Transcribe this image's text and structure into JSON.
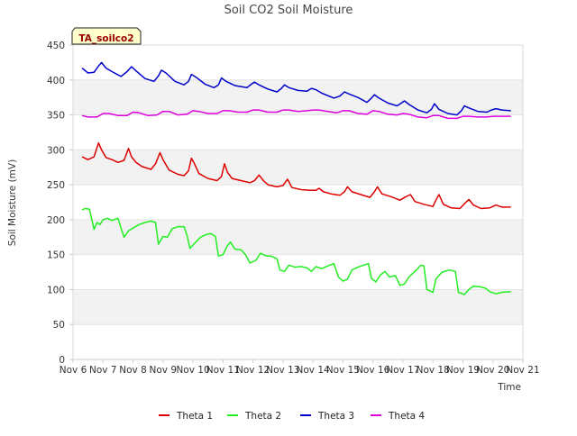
{
  "chart_data": {
    "type": "line",
    "title": "Soil CO2 Soil Moisture",
    "xlabel": "Time",
    "ylabel": "Soil Moisture (mV)",
    "site_label": "TA_soilco2",
    "ylim": [
      0,
      450
    ],
    "xlim": [
      6,
      21
    ],
    "yticks": [
      0,
      50,
      100,
      150,
      200,
      250,
      300,
      350,
      400,
      450
    ],
    "xticks": [
      {
        "value": 6,
        "label": "Nov 6"
      },
      {
        "value": 7,
        "label": "Nov 7"
      },
      {
        "value": 8,
        "label": "Nov 8"
      },
      {
        "value": 9,
        "label": "Nov 9"
      },
      {
        "value": 10,
        "label": "Nov 10"
      },
      {
        "value": 11,
        "label": "Nov 11"
      },
      {
        "value": 12,
        "label": "Nov 12"
      },
      {
        "value": 13,
        "label": "Nov 13"
      },
      {
        "value": 14,
        "label": "Nov 14"
      },
      {
        "value": 15,
        "label": "Nov 15"
      },
      {
        "value": 16,
        "label": "Nov 16"
      },
      {
        "value": 17,
        "label": "Nov 17"
      },
      {
        "value": 18,
        "label": "Nov 18"
      },
      {
        "value": 19,
        "label": "Nov 19"
      },
      {
        "value": 20,
        "label": "Nov 20"
      },
      {
        "value": 21,
        "label": "Nov 21"
      }
    ],
    "grid": "horizontal bands",
    "legend_position": "bottom",
    "series": [
      {
        "name": "Theta 1",
        "color": "#dd0000",
        "points": [
          [
            6.3,
            290
          ],
          [
            6.5,
            286
          ],
          [
            6.7,
            290
          ],
          [
            6.85,
            310
          ],
          [
            6.95,
            300
          ],
          [
            7.1,
            289
          ],
          [
            7.3,
            286
          ],
          [
            7.5,
            282
          ],
          [
            7.7,
            285
          ],
          [
            7.85,
            302
          ],
          [
            7.95,
            290
          ],
          [
            8.1,
            282
          ],
          [
            8.3,
            276
          ],
          [
            8.6,
            272
          ],
          [
            8.75,
            280
          ],
          [
            8.9,
            296
          ],
          [
            9.0,
            286
          ],
          [
            9.2,
            271
          ],
          [
            9.5,
            265
          ],
          [
            9.7,
            263
          ],
          [
            9.85,
            270
          ],
          [
            9.95,
            288
          ],
          [
            10.05,
            280
          ],
          [
            10.2,
            266
          ],
          [
            10.5,
            259
          ],
          [
            10.8,
            256
          ],
          [
            10.95,
            262
          ],
          [
            11.05,
            280
          ],
          [
            11.15,
            268
          ],
          [
            11.3,
            259
          ],
          [
            11.6,
            256
          ],
          [
            11.9,
            253
          ],
          [
            12.05,
            256
          ],
          [
            12.2,
            264
          ],
          [
            12.35,
            256
          ],
          [
            12.5,
            250
          ],
          [
            12.8,
            247
          ],
          [
            13.0,
            249
          ],
          [
            13.15,
            258
          ],
          [
            13.3,
            246
          ],
          [
            13.6,
            243
          ],
          [
            13.9,
            242
          ],
          [
            14.1,
            242
          ],
          [
            14.2,
            245
          ],
          [
            14.35,
            240
          ],
          [
            14.6,
            237
          ],
          [
            14.9,
            235
          ],
          [
            15.05,
            240
          ],
          [
            15.15,
            247
          ],
          [
            15.3,
            240
          ],
          [
            15.6,
            236
          ],
          [
            15.9,
            232
          ],
          [
            16.05,
            240
          ],
          [
            16.15,
            247
          ],
          [
            16.3,
            237
          ],
          [
            16.6,
            233
          ],
          [
            16.9,
            228
          ],
          [
            17.1,
            233
          ],
          [
            17.25,
            236
          ],
          [
            17.4,
            226
          ],
          [
            17.7,
            222
          ],
          [
            18.0,
            219
          ],
          [
            18.1,
            228
          ],
          [
            18.2,
            236
          ],
          [
            18.35,
            222
          ],
          [
            18.6,
            217
          ],
          [
            18.9,
            216
          ],
          [
            19.1,
            225
          ],
          [
            19.2,
            229
          ],
          [
            19.35,
            221
          ],
          [
            19.6,
            216
          ],
          [
            19.9,
            217
          ],
          [
            20.1,
            221
          ],
          [
            20.3,
            218
          ],
          [
            20.6,
            218
          ]
        ]
      },
      {
        "name": "Theta 2",
        "color": "#22ee22",
        "points": [
          [
            6.3,
            214
          ],
          [
            6.4,
            216
          ],
          [
            6.55,
            215
          ],
          [
            6.7,
            186
          ],
          [
            6.8,
            196
          ],
          [
            6.9,
            193
          ],
          [
            7.0,
            200
          ],
          [
            7.15,
            202
          ],
          [
            7.3,
            199
          ],
          [
            7.5,
            202
          ],
          [
            7.6,
            188
          ],
          [
            7.7,
            175
          ],
          [
            7.85,
            184
          ],
          [
            8.0,
            188
          ],
          [
            8.2,
            193
          ],
          [
            8.4,
            196
          ],
          [
            8.6,
            198
          ],
          [
            8.75,
            196
          ],
          [
            8.85,
            165
          ],
          [
            9.0,
            176
          ],
          [
            9.15,
            175
          ],
          [
            9.3,
            187
          ],
          [
            9.5,
            190
          ],
          [
            9.7,
            190
          ],
          [
            9.8,
            178
          ],
          [
            9.9,
            159
          ],
          [
            10.05,
            166
          ],
          [
            10.25,
            175
          ],
          [
            10.45,
            179
          ],
          [
            10.6,
            180
          ],
          [
            10.75,
            176
          ],
          [
            10.85,
            148
          ],
          [
            11.0,
            150
          ],
          [
            11.15,
            163
          ],
          [
            11.25,
            168
          ],
          [
            11.4,
            158
          ],
          [
            11.6,
            157
          ],
          [
            11.75,
            150
          ],
          [
            11.9,
            138
          ],
          [
            12.1,
            142
          ],
          [
            12.25,
            152
          ],
          [
            12.45,
            148
          ],
          [
            12.6,
            148
          ],
          [
            12.8,
            144
          ],
          [
            12.9,
            128
          ],
          [
            13.05,
            126
          ],
          [
            13.2,
            135
          ],
          [
            13.4,
            132
          ],
          [
            13.6,
            133
          ],
          [
            13.8,
            131
          ],
          [
            13.95,
            126
          ],
          [
            14.1,
            133
          ],
          [
            14.3,
            130
          ],
          [
            14.5,
            134
          ],
          [
            14.7,
            137
          ],
          [
            14.85,
            118
          ],
          [
            15.0,
            112
          ],
          [
            15.15,
            115
          ],
          [
            15.3,
            128
          ],
          [
            15.5,
            132
          ],
          [
            15.7,
            135
          ],
          [
            15.85,
            137
          ],
          [
            15.95,
            116
          ],
          [
            16.1,
            111
          ],
          [
            16.25,
            121
          ],
          [
            16.4,
            126
          ],
          [
            16.55,
            118
          ],
          [
            16.75,
            120
          ],
          [
            16.9,
            106
          ],
          [
            17.05,
            108
          ],
          [
            17.2,
            118
          ],
          [
            17.45,
            128
          ],
          [
            17.6,
            135
          ],
          [
            17.7,
            134
          ],
          [
            17.8,
            100
          ],
          [
            18.0,
            96
          ],
          [
            18.1,
            115
          ],
          [
            18.3,
            125
          ],
          [
            18.55,
            128
          ],
          [
            18.75,
            126
          ],
          [
            18.85,
            96
          ],
          [
            19.05,
            93
          ],
          [
            19.2,
            100
          ],
          [
            19.35,
            105
          ],
          [
            19.55,
            104
          ],
          [
            19.75,
            102
          ],
          [
            19.9,
            97
          ],
          [
            20.1,
            94
          ],
          [
            20.3,
            96
          ],
          [
            20.6,
            97
          ]
        ]
      },
      {
        "name": "Theta 3",
        "color": "#0000cc",
        "points": [
          [
            6.3,
            417
          ],
          [
            6.5,
            410
          ],
          [
            6.7,
            411
          ],
          [
            6.85,
            420
          ],
          [
            6.95,
            425
          ],
          [
            7.1,
            417
          ],
          [
            7.3,
            412
          ],
          [
            7.6,
            405
          ],
          [
            7.8,
            412
          ],
          [
            7.95,
            419
          ],
          [
            8.1,
            413
          ],
          [
            8.4,
            402
          ],
          [
            8.7,
            398
          ],
          [
            8.85,
            406
          ],
          [
            8.95,
            414
          ],
          [
            9.1,
            410
          ],
          [
            9.4,
            398
          ],
          [
            9.7,
            393
          ],
          [
            9.85,
            398
          ],
          [
            9.95,
            408
          ],
          [
            10.1,
            404
          ],
          [
            10.4,
            394
          ],
          [
            10.7,
            389
          ],
          [
            10.85,
            393
          ],
          [
            10.95,
            403
          ],
          [
            11.1,
            398
          ],
          [
            11.4,
            392
          ],
          [
            11.8,
            389
          ],
          [
            11.95,
            394
          ],
          [
            12.05,
            397
          ],
          [
            12.2,
            393
          ],
          [
            12.5,
            387
          ],
          [
            12.8,
            383
          ],
          [
            12.95,
            388
          ],
          [
            13.05,
            393
          ],
          [
            13.2,
            389
          ],
          [
            13.5,
            385
          ],
          [
            13.8,
            384
          ],
          [
            13.95,
            388
          ],
          [
            14.1,
            386
          ],
          [
            14.3,
            381
          ],
          [
            14.7,
            374
          ],
          [
            14.9,
            377
          ],
          [
            15.05,
            383
          ],
          [
            15.2,
            380
          ],
          [
            15.5,
            375
          ],
          [
            15.8,
            368
          ],
          [
            15.95,
            374
          ],
          [
            16.05,
            379
          ],
          [
            16.2,
            374
          ],
          [
            16.5,
            367
          ],
          [
            16.8,
            363
          ],
          [
            16.95,
            367
          ],
          [
            17.05,
            370
          ],
          [
            17.2,
            365
          ],
          [
            17.5,
            357
          ],
          [
            17.8,
            353
          ],
          [
            17.95,
            358
          ],
          [
            18.05,
            366
          ],
          [
            18.2,
            358
          ],
          [
            18.5,
            352
          ],
          [
            18.8,
            350
          ],
          [
            18.95,
            356
          ],
          [
            19.05,
            363
          ],
          [
            19.2,
            360
          ],
          [
            19.5,
            355
          ],
          [
            19.8,
            354
          ],
          [
            19.95,
            357
          ],
          [
            20.1,
            359
          ],
          [
            20.3,
            357
          ],
          [
            20.6,
            356
          ]
        ]
      },
      {
        "name": "Theta 4",
        "color": "#dd00dd",
        "points": [
          [
            6.3,
            349
          ],
          [
            6.5,
            347
          ],
          [
            6.8,
            347
          ],
          [
            7.0,
            352
          ],
          [
            7.2,
            352
          ],
          [
            7.5,
            349
          ],
          [
            7.8,
            349
          ],
          [
            8.0,
            354
          ],
          [
            8.2,
            353
          ],
          [
            8.5,
            349
          ],
          [
            8.8,
            350
          ],
          [
            9.0,
            355
          ],
          [
            9.2,
            355
          ],
          [
            9.5,
            350
          ],
          [
            9.8,
            351
          ],
          [
            10.0,
            356
          ],
          [
            10.2,
            355
          ],
          [
            10.5,
            352
          ],
          [
            10.8,
            352
          ],
          [
            11.0,
            356
          ],
          [
            11.2,
            356
          ],
          [
            11.5,
            354
          ],
          [
            11.8,
            354
          ],
          [
            12.0,
            357
          ],
          [
            12.2,
            357
          ],
          [
            12.5,
            354
          ],
          [
            12.8,
            354
          ],
          [
            13.0,
            357
          ],
          [
            13.2,
            357
          ],
          [
            13.5,
            355
          ],
          [
            13.8,
            356
          ],
          [
            14.0,
            357
          ],
          [
            14.2,
            357
          ],
          [
            14.5,
            355
          ],
          [
            14.8,
            353
          ],
          [
            15.0,
            356
          ],
          [
            15.2,
            356
          ],
          [
            15.5,
            352
          ],
          [
            15.8,
            351
          ],
          [
            16.0,
            356
          ],
          [
            16.2,
            355
          ],
          [
            16.5,
            351
          ],
          [
            16.8,
            350
          ],
          [
            17.0,
            352
          ],
          [
            17.2,
            351
          ],
          [
            17.5,
            347
          ],
          [
            17.8,
            346
          ],
          [
            18.0,
            349
          ],
          [
            18.2,
            349
          ],
          [
            18.5,
            345
          ],
          [
            18.8,
            345
          ],
          [
            19.0,
            348
          ],
          [
            19.2,
            348
          ],
          [
            19.5,
            347
          ],
          [
            19.8,
            347
          ],
          [
            20.0,
            348
          ],
          [
            20.3,
            348
          ],
          [
            20.6,
            348
          ]
        ]
      }
    ]
  }
}
